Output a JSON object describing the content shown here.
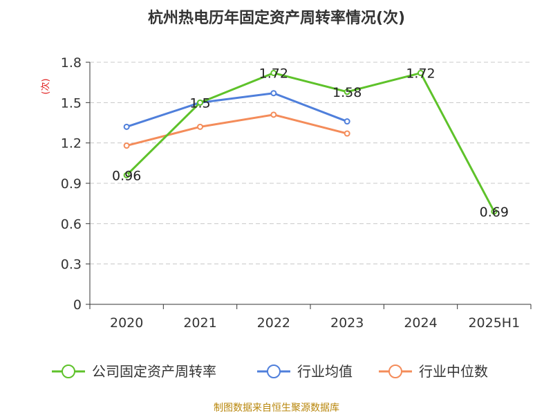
{
  "chart_data": {
    "type": "line",
    "title": "杭州热电历年固定资产周转率情况(次)",
    "ylabel": "(次)",
    "xlabel": "",
    "categories": [
      "2020",
      "2021",
      "2022",
      "2023",
      "2024",
      "2025H1"
    ],
    "ylim": [
      0,
      1.8
    ],
    "yticks": [
      "0",
      "0.3",
      "0.6",
      "0.9",
      "1.2",
      "1.5",
      "1.8"
    ],
    "grid": true,
    "legend_position": "bottom",
    "series": [
      {
        "name": "公司固定资产周转率",
        "color": "#5ec22a",
        "values": [
          0.96,
          1.5,
          1.72,
          1.58,
          1.72,
          0.69
        ],
        "labels": [
          "0.96",
          "1.5",
          "1.72",
          "1.58",
          "1.72",
          "0.69"
        ],
        "show_labels": true
      },
      {
        "name": "行业均值",
        "color": "#4f7fdb",
        "values": [
          1.32,
          1.5,
          1.57,
          1.36,
          null,
          null
        ],
        "show_labels": false
      },
      {
        "name": "行业中位数",
        "color": "#f48c5a",
        "values": [
          1.18,
          1.32,
          1.41,
          1.27,
          null,
          null
        ],
        "show_labels": false
      }
    ]
  },
  "footer": {
    "source": "制图数据来自恒生聚源数据库"
  }
}
